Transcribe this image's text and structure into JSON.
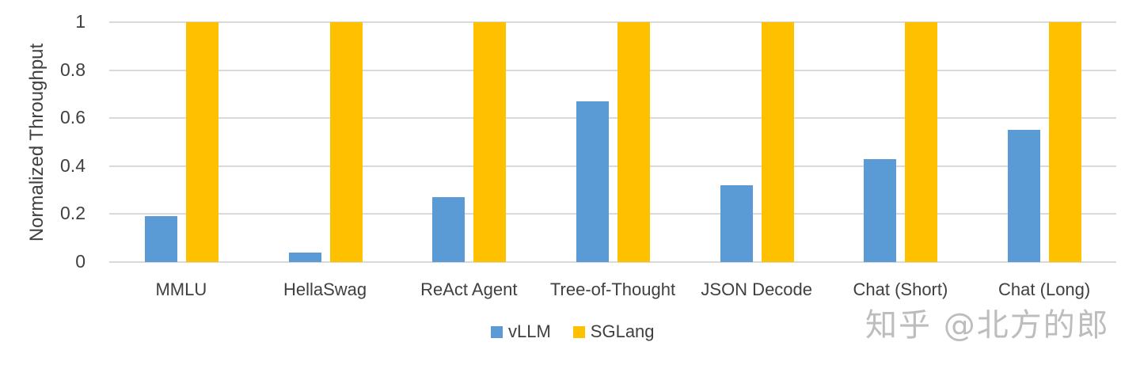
{
  "chart_data": {
    "type": "bar",
    "title": "",
    "xlabel": "",
    "ylabel": "Normalized Throughput",
    "ylim": [
      0,
      1
    ],
    "yticks": [
      "0",
      "0.2",
      "0.4",
      "0.6",
      "0.8",
      "1"
    ],
    "grid": true,
    "legend_position": "bottom",
    "categories": [
      "MMLU",
      "HellaSwag",
      "ReAct Agent",
      "Tree-of-Thought",
      "JSON Decode",
      "Chat (Short)",
      "Chat (Long)"
    ],
    "series": [
      {
        "name": "vLLM",
        "color": "#5b9bd5",
        "values": [
          0.19,
          0.04,
          0.27,
          0.67,
          0.32,
          0.43,
          0.55
        ]
      },
      {
        "name": "SGLang",
        "color": "#ffc000",
        "values": [
          1,
          1,
          1,
          1,
          1,
          1,
          1
        ]
      }
    ]
  },
  "watermark": "知乎 @北方的郎"
}
